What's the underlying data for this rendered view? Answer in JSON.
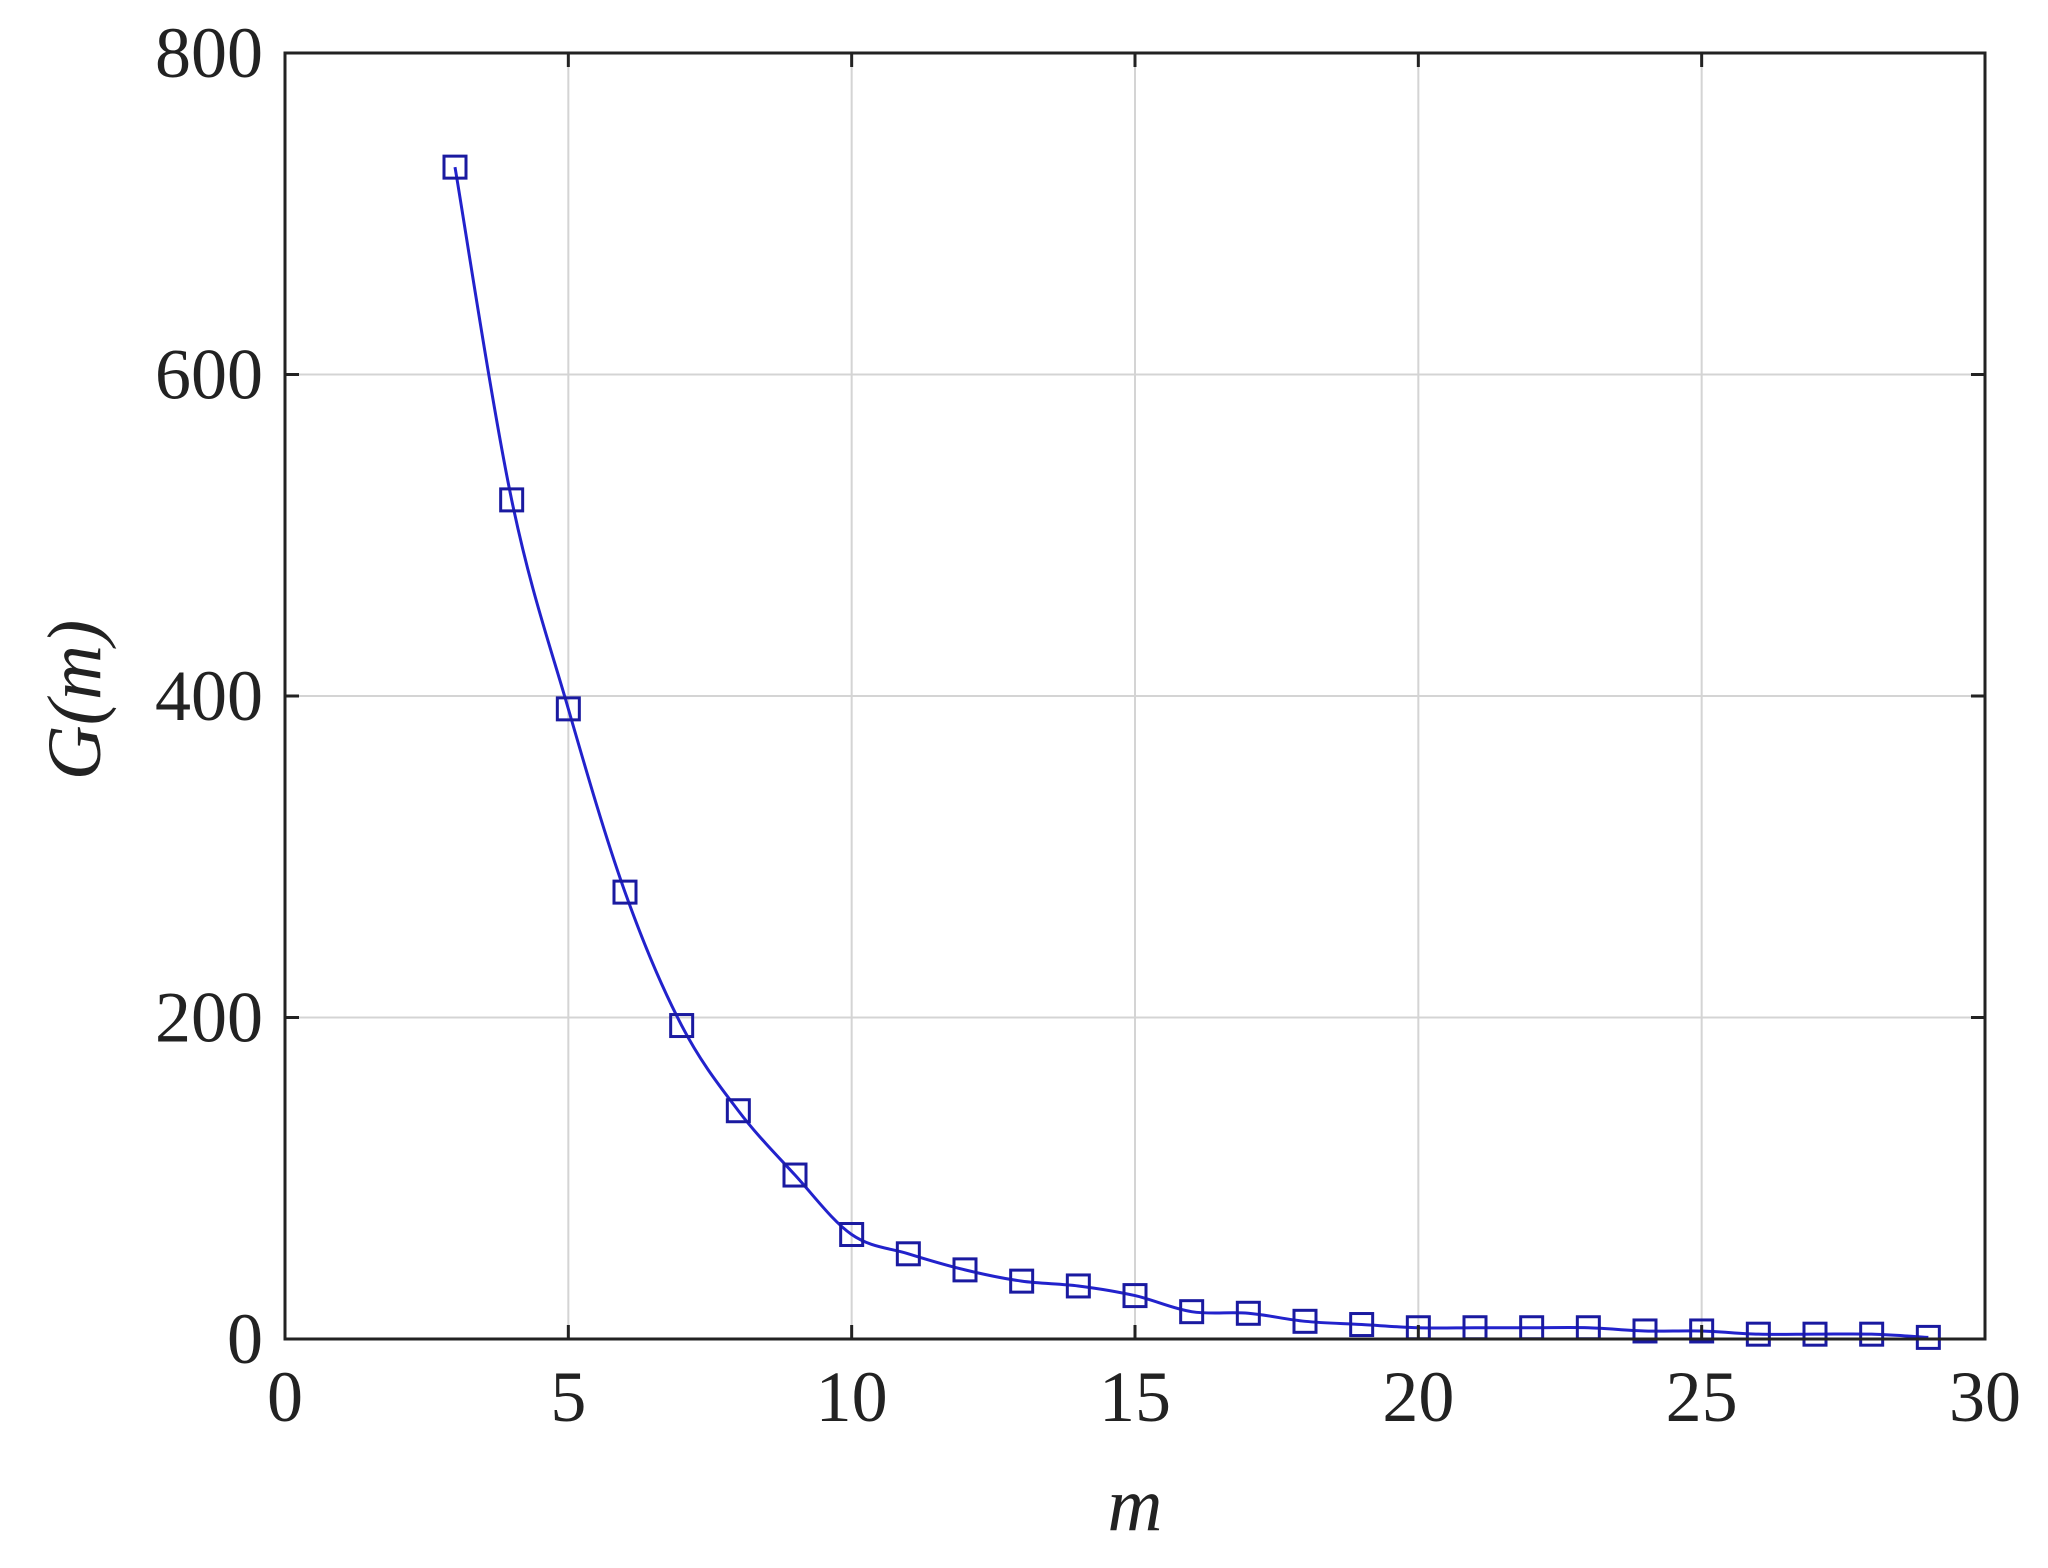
{
  "chart_data": {
    "type": "line",
    "title": "",
    "xlabel": "m",
    "ylabel": "G(m)",
    "xlim": [
      0,
      30
    ],
    "ylim": [
      0,
      800
    ],
    "xticks": [
      "0",
      "5",
      "10",
      "15",
      "20",
      "25",
      "30"
    ],
    "yticks": [
      "0",
      "200",
      "400",
      "600",
      "800"
    ],
    "grid": true,
    "legend": "none",
    "marker": "square",
    "line_color": "#2222cc",
    "marker_color": "#1a1aa0",
    "series": [
      {
        "x": [
          3,
          4,
          5,
          6,
          7,
          8,
          9,
          10,
          11,
          12,
          13,
          14,
          15,
          16,
          17,
          18,
          19,
          20,
          21,
          22,
          23,
          24,
          25,
          26,
          27,
          28,
          29
        ],
        "values": [
          729,
          522,
          392,
          278,
          195,
          142,
          102,
          65,
          53,
          43,
          36,
          33,
          27,
          17,
          16,
          11,
          9,
          7,
          7,
          7,
          7,
          5,
          5,
          3,
          3,
          3,
          1
        ]
      }
    ]
  }
}
